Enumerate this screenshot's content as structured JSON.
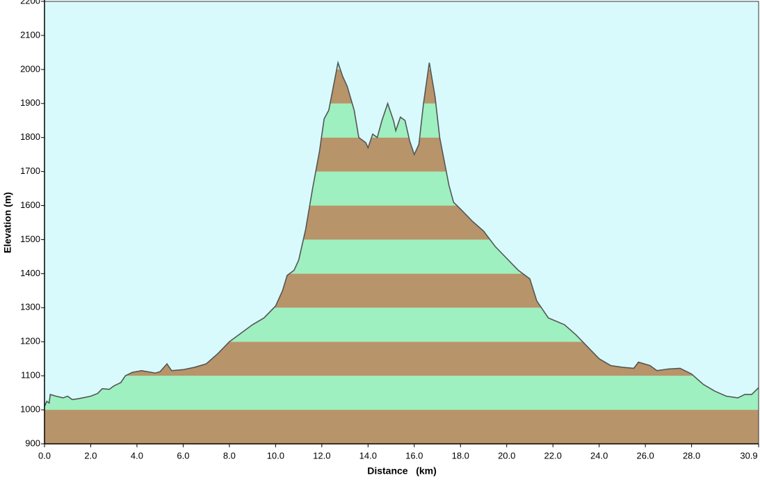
{
  "chart_data": {
    "type": "area",
    "xlabel": "Distance   (km)",
    "ylabel": "Elevation (m)",
    "xlim": [
      0,
      30.9
    ],
    "ylim": [
      900,
      2200
    ],
    "xticks": [
      {
        "value": 0,
        "label": "0.0"
      },
      {
        "value": 2,
        "label": "2.0"
      },
      {
        "value": 4,
        "label": "4.0"
      },
      {
        "value": 6,
        "label": "6.0"
      },
      {
        "value": 8,
        "label": "8.0"
      },
      {
        "value": 10,
        "label": "10.0"
      },
      {
        "value": 12,
        "label": "12.0"
      },
      {
        "value": 14,
        "label": "14.0"
      },
      {
        "value": 16,
        "label": "16.0"
      },
      {
        "value": 18,
        "label": "18.0"
      },
      {
        "value": 20,
        "label": "20.0"
      },
      {
        "value": 22,
        "label": "22.0"
      },
      {
        "value": 24,
        "label": "24.0"
      },
      {
        "value": 26,
        "label": "26.0"
      },
      {
        "value": 28,
        "label": "28.0"
      },
      30.9
    ],
    "yticks": [
      900,
      1000,
      1100,
      1200,
      1300,
      1400,
      1500,
      1600,
      1700,
      1800,
      1900,
      2000,
      2100,
      2200
    ],
    "background": "#d8fafc",
    "line_color": "#555555",
    "band_colors": [
      "#b8946a",
      "#9ef0c0"
    ],
    "x": [
      0,
      0.1,
      0.2,
      0.25,
      0.5,
      0.8,
      1.0,
      1.2,
      1.5,
      2.0,
      2.3,
      2.5,
      2.8,
      3.0,
      3.3,
      3.5,
      3.8,
      4.2,
      4.8,
      5.0,
      5.3,
      5.5,
      6.0,
      6.5,
      7.0,
      7.5,
      8.0,
      8.3,
      9.0,
      9.5,
      10.0,
      10.3,
      10.5,
      10.8,
      11.0,
      11.3,
      11.6,
      11.9,
      12.1,
      12.3,
      12.5,
      12.7,
      12.9,
      13.1,
      13.4,
      13.6,
      13.9,
      14.0,
      14.2,
      14.4,
      14.6,
      14.85,
      15.1,
      15.2,
      15.4,
      15.6,
      15.8,
      16.0,
      16.2,
      16.4,
      16.65,
      16.9,
      17.1,
      17.3,
      17.5,
      17.7,
      18.0,
      18.5,
      19.0,
      19.5,
      20.0,
      20.5,
      21.0,
      21.3,
      21.8,
      22.5,
      23.0,
      23.5,
      24.0,
      24.5,
      25.0,
      25.5,
      25.7,
      26.2,
      26.5,
      27.0,
      27.5,
      28.0,
      28.5,
      29.0,
      29.5,
      30.0,
      30.3,
      30.6,
      30.9
    ],
    "y": [
      1010,
      1025,
      1020,
      1045,
      1040,
      1035,
      1040,
      1030,
      1033,
      1040,
      1048,
      1062,
      1060,
      1070,
      1080,
      1100,
      1110,
      1115,
      1108,
      1112,
      1135,
      1115,
      1118,
      1125,
      1135,
      1165,
      1200,
      1215,
      1250,
      1270,
      1305,
      1350,
      1395,
      1410,
      1440,
      1530,
      1650,
      1760,
      1855,
      1880,
      1950,
      2020,
      1980,
      1950,
      1880,
      1800,
      1785,
      1770,
      1810,
      1800,
      1850,
      1900,
      1850,
      1820,
      1860,
      1850,
      1790,
      1750,
      1780,
      1900,
      2020,
      1920,
      1800,
      1730,
      1660,
      1610,
      1590,
      1555,
      1525,
      1480,
      1445,
      1410,
      1385,
      1320,
      1270,
      1250,
      1220,
      1185,
      1150,
      1130,
      1125,
      1122,
      1140,
      1130,
      1115,
      1120,
      1122,
      1105,
      1075,
      1055,
      1040,
      1035,
      1045,
      1045,
      1065
    ]
  }
}
